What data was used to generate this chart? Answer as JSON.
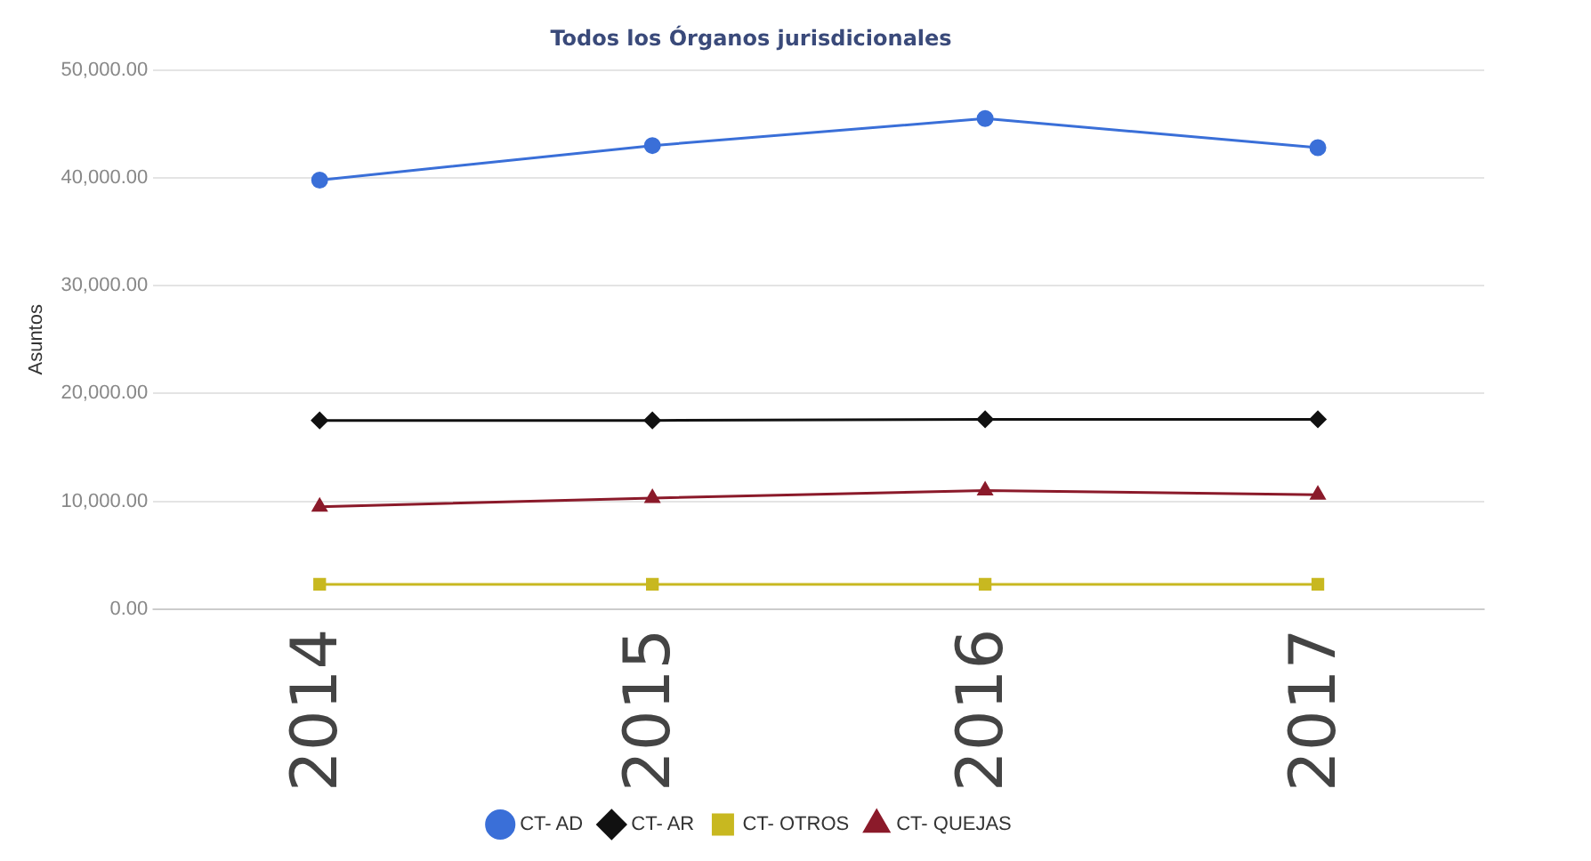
{
  "chart_data": {
    "type": "line",
    "title": "Todos los Órganos jurisdicionales",
    "ylabel": "Asuntos",
    "categories": [
      "2014",
      "2015",
      "2016",
      "2017"
    ],
    "series": [
      {
        "name": "CT- AD",
        "color": "#3a6fd8",
        "marker": "circle",
        "values": [
          39800,
          43000,
          45500,
          42800
        ]
      },
      {
        "name": "CT- AR",
        "color": "#111111",
        "marker": "diamond",
        "values": [
          17500,
          17500,
          17600,
          17600
        ]
      },
      {
        "name": "CT- OTROS",
        "color": "#c8b820",
        "marker": "square",
        "values": [
          2300,
          2300,
          2300,
          2300
        ]
      },
      {
        "name": "CT- QUEJAS",
        "color": "#8b1a2a",
        "marker": "triangle",
        "values": [
          9500,
          10300,
          11000,
          10600
        ]
      }
    ],
    "ylim": [
      0,
      50000
    ],
    "yticks": [
      {
        "value": 0,
        "label": "0.00"
      },
      {
        "value": 10000,
        "label": "10,000.00"
      },
      {
        "value": 20000,
        "label": "20,000.00"
      },
      {
        "value": 30000,
        "label": "30,000.00"
      },
      {
        "value": 40000,
        "label": "40,000.00"
      },
      {
        "value": 50000,
        "label": "50,000.00"
      }
    ],
    "grid": "y",
    "legend": "bottom"
  }
}
